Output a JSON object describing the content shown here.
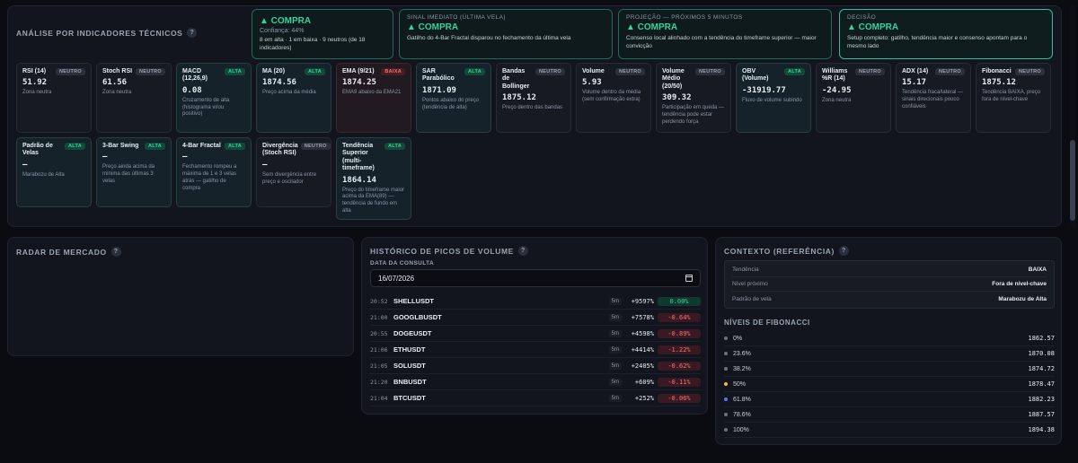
{
  "tech_panel": {
    "title": "ANÁLISE POR INDICADORES TÉCNICOS",
    "summaries": [
      {
        "label": "",
        "signal": "▲ COMPRA",
        "sub": "Confiança: 44%",
        "desc": "8 em alta · 1 em baixa · 9 neutros (de 18 indicadores)"
      },
      {
        "label": "SINAL IMEDIATO (ÚLTIMA VELA)",
        "signal": "▲ COMPRA",
        "sub": "",
        "desc": "Gatilho do 4-Bar Fractal disparou no fechamento da última vela"
      },
      {
        "label": "PROJEÇÃO — PRÓXIMOS 5 MINUTOS",
        "signal": "▲ COMPRA",
        "sub": "",
        "desc": "Consenso local alinhado com a tendência do timeframe superior — maior convicção"
      },
      {
        "label": "DECISÃO",
        "signal": "▲ COMPRA",
        "sub": "",
        "desc": "Setup completo: gatilho, tendência maior e consenso apontam para o mesmo lado"
      }
    ],
    "indicators": [
      {
        "name": "RSI (14)",
        "badge": "NEUTRO",
        "value": "51.92",
        "note": "Zona neutra",
        "state": "neutro"
      },
      {
        "name": "Stoch RSI",
        "badge": "NEUTRO",
        "value": "61.56",
        "note": "Zona neutra",
        "state": "neutro"
      },
      {
        "name": "MACD (12,26,9)",
        "badge": "ALTA",
        "value": "0.08",
        "note": "Cruzamento de alta (histograma virou positivo)",
        "state": "alta"
      },
      {
        "name": "MA (20)",
        "badge": "ALTA",
        "value": "1874.56",
        "note": "Preço acima da média",
        "state": "alta"
      },
      {
        "name": "EMA (9/21)",
        "badge": "BAIXA",
        "value": "1874.25",
        "note": "EMA9 abaixo da EMA21",
        "state": "baixa"
      },
      {
        "name": "SAR Parabólico",
        "badge": "ALTA",
        "value": "1871.09",
        "note": "Pontos abaixo do preço (tendência de alta)",
        "state": "alta"
      },
      {
        "name": "Bandas de Bollinger",
        "badge": "NEUTRO",
        "value": "1875.12",
        "note": "Preço dentro das bandas",
        "state": "neutro"
      },
      {
        "name": "Volume",
        "badge": "NEUTRO",
        "value": "5.93",
        "note": "Volume dentro da média (sem confirmação extra)",
        "state": "neutro"
      },
      {
        "name": "Volume Médio (20/50)",
        "badge": "NEUTRO",
        "value": "309.32",
        "note": "Participação em queda — tendência pode estar perdendo força",
        "state": "neutro"
      },
      {
        "name": "OBV (Volume)",
        "badge": "ALTA",
        "value": "-31919.77",
        "note": "Fluxo de volume subindo",
        "state": "alta"
      },
      {
        "name": "Williams %R (14)",
        "badge": "NEUTRO",
        "value": "-24.95",
        "note": "Zona neutra",
        "state": "neutro"
      },
      {
        "name": "ADX (14)",
        "badge": "NEUTRO",
        "value": "15.17",
        "note": "Tendência fraca/lateral — sinais direcionais pouco confiáveis",
        "state": "neutro"
      },
      {
        "name": "Fibonacci",
        "badge": "NEUTRO",
        "value": "1875.12",
        "note": "Tendência BAIXA, preço fora de nível-chave",
        "state": "neutro"
      },
      {
        "name": "Padrão de Velas",
        "badge": "ALTA",
        "value": "—",
        "note": "Marabozu de Alta",
        "state": "alta"
      },
      {
        "name": "3-Bar Swing",
        "badge": "ALTA",
        "value": "—",
        "note": "Preço ainda acima da mínima das últimas 3 velas",
        "state": "alta"
      },
      {
        "name": "4-Bar Fractal",
        "badge": "ALTA",
        "value": "—",
        "note": "Fechamento rompeu a máxima de 1 e 3 velas atrás — gatilho de compra",
        "state": "alta"
      },
      {
        "name": "Divergência (Stoch RSI)",
        "badge": "NEUTRO",
        "value": "—",
        "note": "Sem divergência entre preço e oscilador",
        "state": "neutro"
      },
      {
        "name": "Tendência Superior (multi-timeframe)",
        "badge": "ALTA",
        "value": "1864.14",
        "note": "Preço do timeframe maior acima da EMA(89) — tendência de fundo em alta",
        "state": "alta"
      }
    ]
  },
  "radar": {
    "title": "RADAR DE MERCADO"
  },
  "history": {
    "title": "HISTÓRICO DE PICOS DE VOLUME",
    "date_label": "DATA DA CONSULTA",
    "date_value": "16/07/2026",
    "rows": [
      {
        "time": "20:52",
        "symbol": "SHELLUSDT",
        "tf": "5m",
        "spike": "+9597%",
        "change": "0.00%",
        "dir": "pos"
      },
      {
        "time": "21:00",
        "symbol": "GOOGLBUSDT",
        "tf": "5m",
        "spike": "+7578%",
        "change": "-0.64%",
        "dir": "neg"
      },
      {
        "time": "20:55",
        "symbol": "DOGEUSDT",
        "tf": "5m",
        "spike": "+4598%",
        "change": "-0.89%",
        "dir": "neg"
      },
      {
        "time": "21:06",
        "symbol": "ETHUSDT",
        "tf": "5m",
        "spike": "+4414%",
        "change": "-1.22%",
        "dir": "neg"
      },
      {
        "time": "21:05",
        "symbol": "SOLUSDT",
        "tf": "5m",
        "spike": "+2405%",
        "change": "-0.62%",
        "dir": "neg"
      },
      {
        "time": "21:20",
        "symbol": "BNBUSDT",
        "tf": "5m",
        "spike": "+609%",
        "change": "-0.11%",
        "dir": "neg"
      },
      {
        "time": "21:04",
        "symbol": "BTCUSDT",
        "tf": "5m",
        "spike": "+252%",
        "change": "-0.06%",
        "dir": "neg"
      }
    ]
  },
  "context": {
    "title": "CONTEXTO (REFERÊNCIA)",
    "rows": [
      {
        "key": "Tendência",
        "value": "BAIXA"
      },
      {
        "key": "Nível próximo",
        "value": "Fora de nível-chave"
      },
      {
        "key": "Padrão de vela",
        "value": "Marabozu de Alta"
      }
    ],
    "fib_title": "NÍVEIS DE FIBONACCI",
    "fib_levels": [
      {
        "level": "0%",
        "price": "1862.57",
        "dot": "#6b7280"
      },
      {
        "level": "23.6%",
        "price": "1870.08",
        "dot": "#6b7280"
      },
      {
        "level": "38.2%",
        "price": "1874.72",
        "dot": "#6b7280"
      },
      {
        "level": "50%",
        "price": "1878.47",
        "dot": "#f5b83d"
      },
      {
        "level": "61.8%",
        "price": "1882.23",
        "dot": "#4f7cf7"
      },
      {
        "level": "78.6%",
        "price": "1887.57",
        "dot": "#6b7280"
      },
      {
        "level": "100%",
        "price": "1894.38",
        "dot": "#6b7280"
      }
    ]
  },
  "colors": {
    "accent": "#34d399",
    "negative": "#f87171",
    "background": "#0a0c12"
  }
}
